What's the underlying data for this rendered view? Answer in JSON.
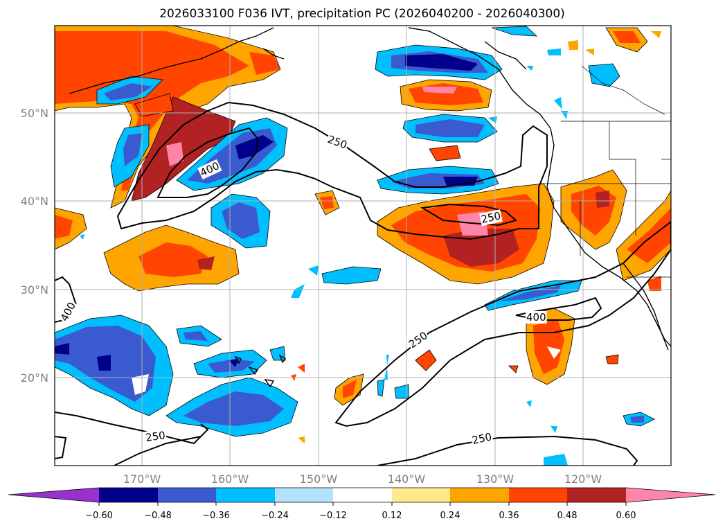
{
  "title": "2026033100 F036 IVT, precipitation PC (2026040200 - 2026040300)",
  "map": {
    "lat_labels": [
      "50°N",
      "40°N",
      "30°N",
      "20°N"
    ],
    "lon_labels": [
      "170°W",
      "160°W",
      "150°W",
      "140°W",
      "130°W",
      "120°W"
    ],
    "contour_labels": [
      "250",
      "400",
      "250",
      "400",
      "250",
      "400",
      "250",
      "250"
    ]
  },
  "colorbar": {
    "tick_labels": [
      "−0.60",
      "−0.48",
      "−0.36",
      "−0.24",
      "−0.12",
      "0.12",
      "0.24",
      "0.36",
      "0.48",
      "0.60"
    ],
    "colors": [
      "#9932cc",
      "#00008b",
      "#3a5bcf",
      "#00bfff",
      "#b0e2fb",
      "#ffffff",
      "#ffe98a",
      "#ffa500",
      "#ff4500",
      "#b22222",
      "#ff85a8"
    ]
  }
}
